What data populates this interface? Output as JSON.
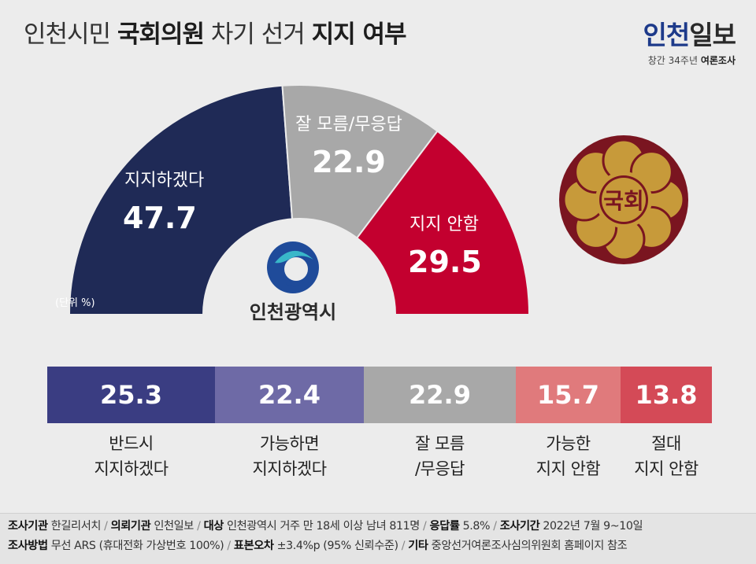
{
  "title": {
    "part1": "인천시민 ",
    "part2": "국회의원",
    "part3": " 차기 선거 ",
    "part4": "지지 여부"
  },
  "brand": {
    "name_part1": "인천",
    "name_part2": "일보",
    "sub_normal": "창간 34주년 ",
    "sub_bold": "여론조사"
  },
  "unit_label": "(단위 %)",
  "center_logo_text": "인천광역시",
  "emblem_text": "국회",
  "colors": {
    "support": "#1f2a56",
    "unknown": "#a8a8a8",
    "oppose": "#c3002f",
    "definitely_support": "#3a3d82",
    "maybe_support": "#6e6aa6",
    "maybe_oppose": "#e07a7c",
    "definitely_oppose": "#d44a57",
    "emblem_outer": "#7a1520",
    "emblem_gold": "#c79a3a"
  },
  "chart_data": [
    {
      "type": "pie",
      "style": "half-donut",
      "categories": [
        "지지하겠다",
        "잘 모름/무응답",
        "지지 안함"
      ],
      "values": [
        47.7,
        22.9,
        29.5
      ],
      "value_labels": [
        "47.7",
        "22.9",
        "29.5"
      ],
      "unit": "%"
    },
    {
      "type": "bar",
      "style": "stacked-horizontal",
      "categories": [
        "반드시\n지지하겠다",
        "가능하면\n지지하겠다",
        "잘 모름\n/무응답",
        "가능한\n지지 안함",
        "절대\n지지 안함"
      ],
      "values": [
        25.3,
        22.4,
        22.9,
        15.7,
        13.8
      ],
      "value_labels": [
        "25.3",
        "22.4",
        "22.9",
        "15.7",
        "13.8"
      ],
      "unit": "%"
    }
  ],
  "footer": {
    "line1": [
      {
        "k": "조사기관",
        "v": "한길리서치"
      },
      {
        "k": "의뢰기관",
        "v": "인천일보"
      },
      {
        "k": "대상",
        "v": "인천광역시 거주 만 18세 이상 남녀 811명"
      },
      {
        "k": "응답률",
        "v": "5.8%"
      },
      {
        "k": "조사기간",
        "v": "2022년 7월 9~10일"
      }
    ],
    "line2": [
      {
        "k": "조사방법",
        "v": "무선 ARS (휴대전화 가상번호 100%)"
      },
      {
        "k": "표본오차",
        "v": "±3.4%p (95% 신뢰수준)"
      },
      {
        "k": "기타",
        "v": "중앙선거여론조사심의위원회 홈페이지 참조"
      }
    ]
  }
}
